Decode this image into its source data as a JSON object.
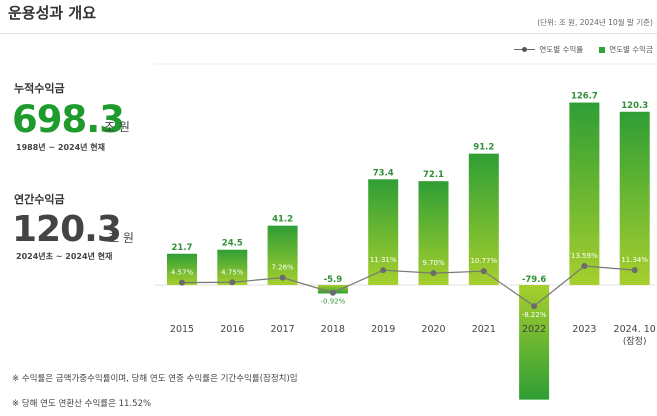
{
  "header": {
    "title": "운용성과 개요",
    "unit_note": "(단위: 조 원, 2024년 10월 말 기준)"
  },
  "legend": {
    "line_label": "연도별 수익률",
    "bar_label": "연도별 수익금"
  },
  "cumulative": {
    "label": "누적수익금",
    "value": "698.3",
    "unit": "조 원",
    "period": "1988년 ~ 2024년 현재"
  },
  "annual": {
    "label": "연간수익금",
    "value": "120.3",
    "unit": "조 원",
    "period": "2024년초 ~ 2024년 현재"
  },
  "chart_data": {
    "type": "bar",
    "title": "",
    "xlabel": "",
    "ylabel": "",
    "categories": [
      "2015",
      "2016",
      "2017",
      "2018",
      "2019",
      "2020",
      "2021",
      "2022",
      "2023",
      "2024. 10"
    ],
    "category_notes": [
      "",
      "",
      "",
      "",
      "",
      "",
      "",
      "",
      "",
      "(잠정)"
    ],
    "series": [
      {
        "name": "연도별 수익금",
        "kind": "bar",
        "color": "#34a43a",
        "values": [
          21.7,
          24.5,
          41.2,
          -5.9,
          73.4,
          72.1,
          91.2,
          -79.6,
          126.7,
          120.3
        ],
        "labels": [
          "21.7",
          "24.5",
          "41.2",
          "-5.9",
          "73.4",
          "72.1",
          "91.2",
          "-79.6",
          "126.7",
          "120.3"
        ]
      },
      {
        "name": "연도별 수익률",
        "kind": "line",
        "color": "#666666",
        "values": [
          4.57,
          4.75,
          7.26,
          -0.92,
          11.31,
          9.7,
          10.77,
          -8.22,
          13.59,
          11.34
        ],
        "labels": [
          "4.57%",
          "4.75%",
          "7.26%",
          "-0.92%",
          "11.31%",
          "9.70%",
          "10.77%",
          "-8.22%",
          "13.59%",
          "11.34%"
        ]
      }
    ],
    "ylim_bar": [
      -80,
      130
    ],
    "ylim_rate": [
      -45,
      70
    ]
  },
  "footnotes": [
    "※ 수익률은 금액가중수익률이며, 당해 연도 연중 수익률은 기간수익률(잠정치)임",
    "※ 당해 연도 연환산 수익률은 11.52%"
  ]
}
